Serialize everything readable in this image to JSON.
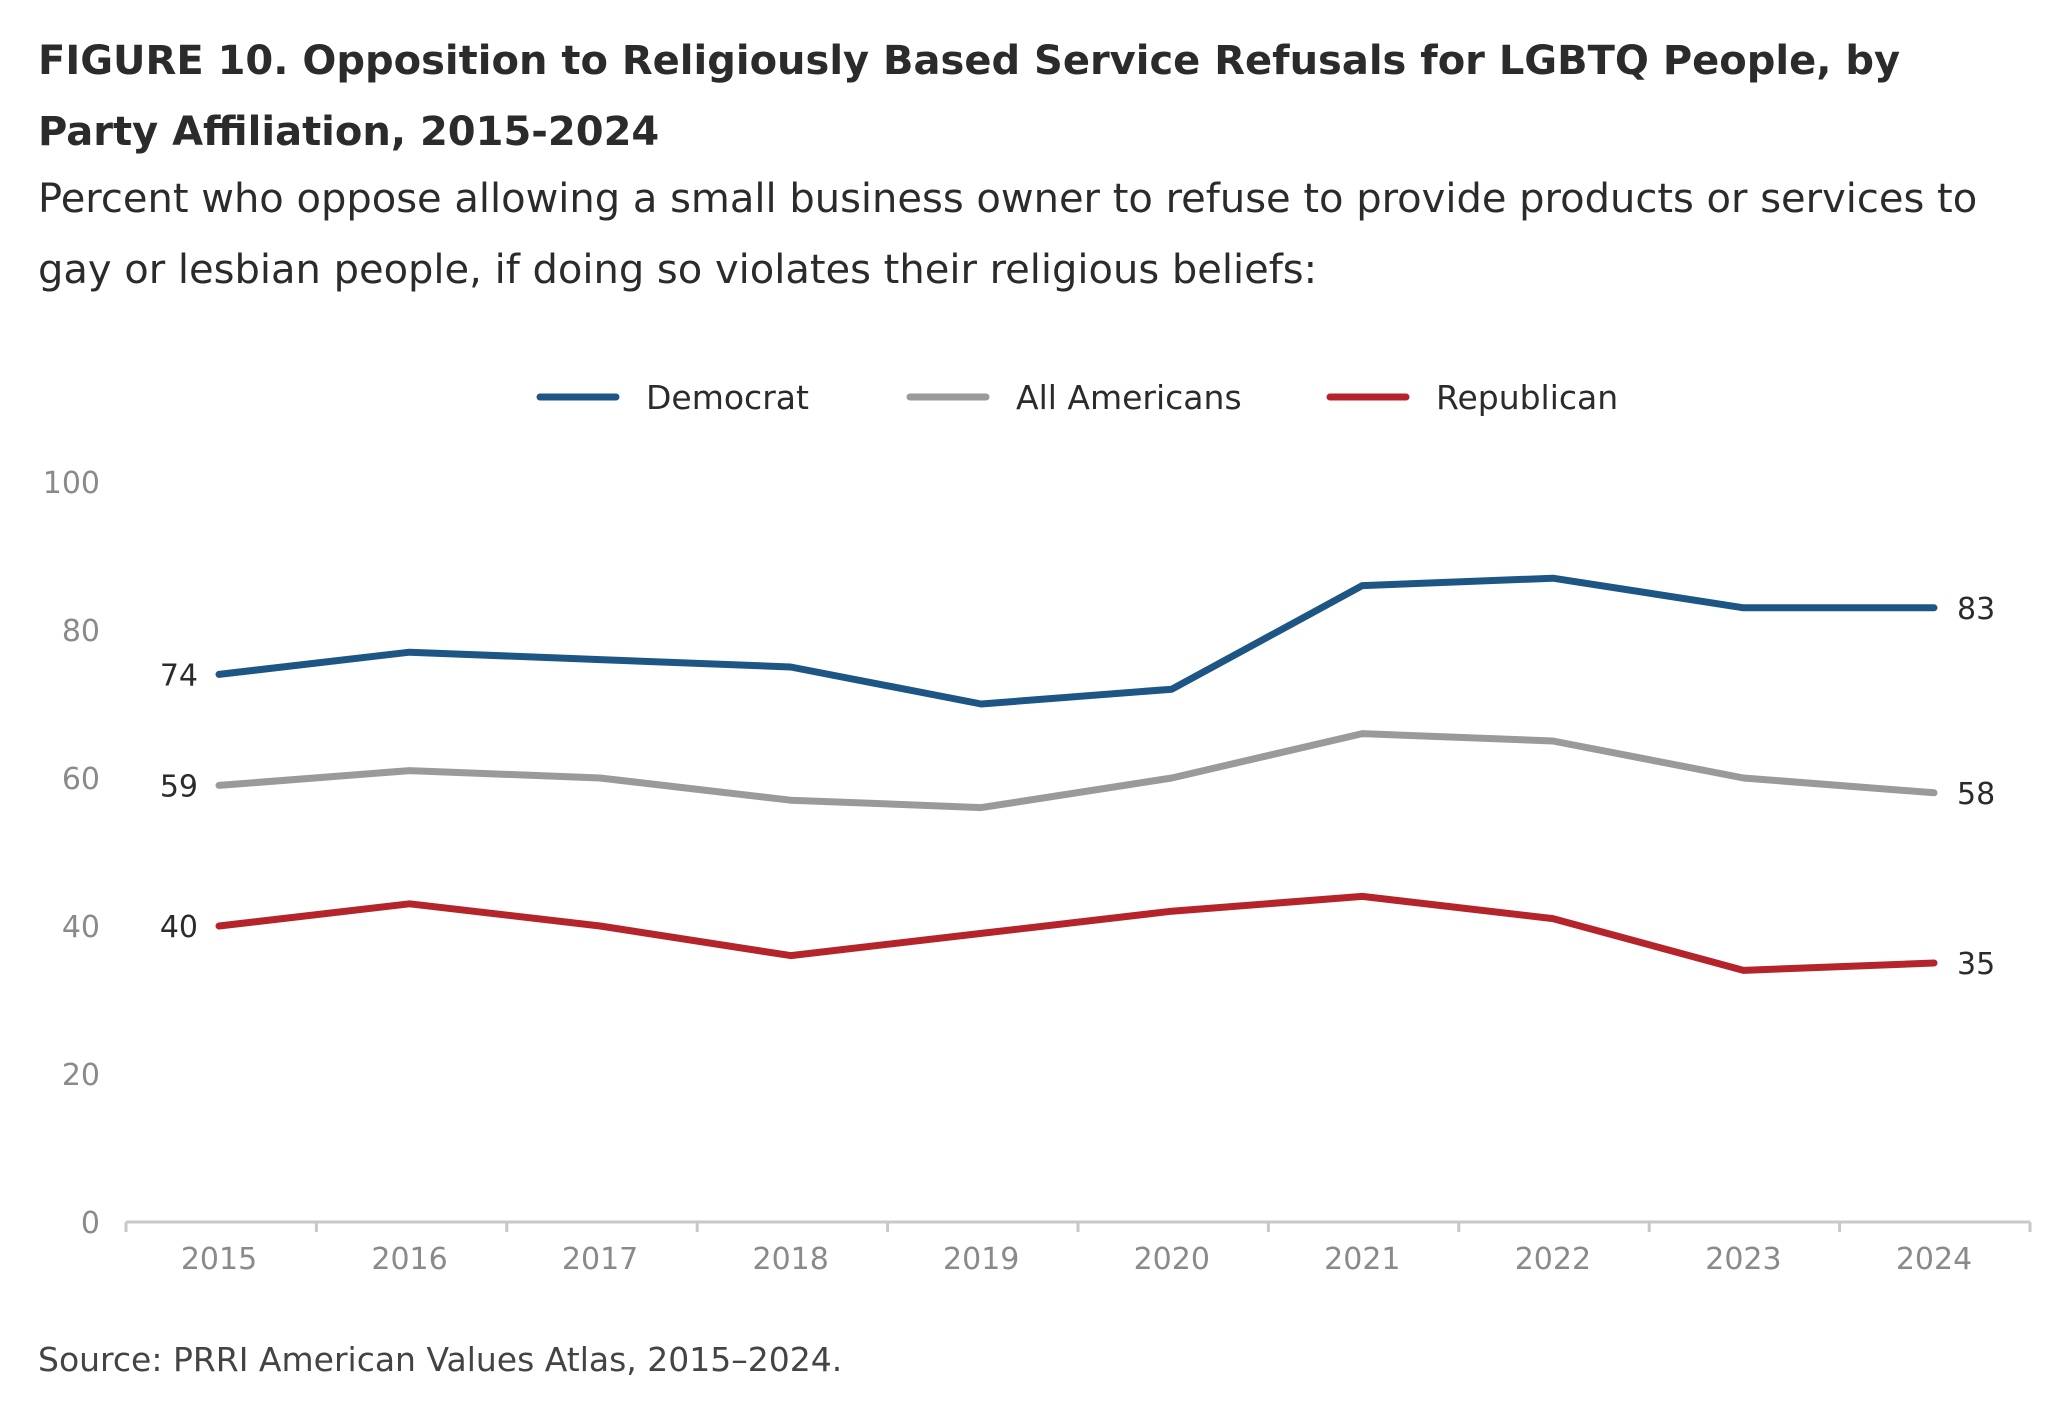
{
  "title": "FIGURE 10. Opposition to Religiously Based Service Refusals for LGBTQ People, by Party Affiliation, 2015-2024",
  "subtitle": "Percent who oppose allowing a small business owner to refuse to provide products or services to gay or lesbian people, if doing so violates their religious beliefs:",
  "source": "Source: PRRI American Values Atlas, 2015–2024.",
  "chart_data": {
    "type": "line",
    "x": [
      "2015",
      "2016",
      "2017",
      "2018",
      "2019",
      "2020",
      "2021",
      "2022",
      "2023",
      "2024"
    ],
    "ylim": [
      0,
      100
    ],
    "yticks": [
      "0",
      "20",
      "40",
      "60",
      "80",
      "100"
    ],
    "grid": false,
    "legend_position": "top-center",
    "series": [
      {
        "name": "Democrat",
        "color": "#1d5684",
        "values": [
          74,
          77,
          76,
          75,
          70,
          72,
          86,
          87,
          83,
          83
        ],
        "start_label": "74",
        "end_label": "83"
      },
      {
        "name": "All Americans",
        "color": "#9a9a9a",
        "values": [
          59,
          61,
          60,
          57,
          56,
          60,
          66,
          65,
          60,
          58
        ],
        "start_label": "59",
        "end_label": "58"
      },
      {
        "name": "Republican",
        "color": "#b5242b",
        "values": [
          40,
          43,
          40,
          36,
          39,
          42,
          44,
          41,
          34,
          35
        ],
        "start_label": "40",
        "end_label": "35"
      }
    ]
  }
}
